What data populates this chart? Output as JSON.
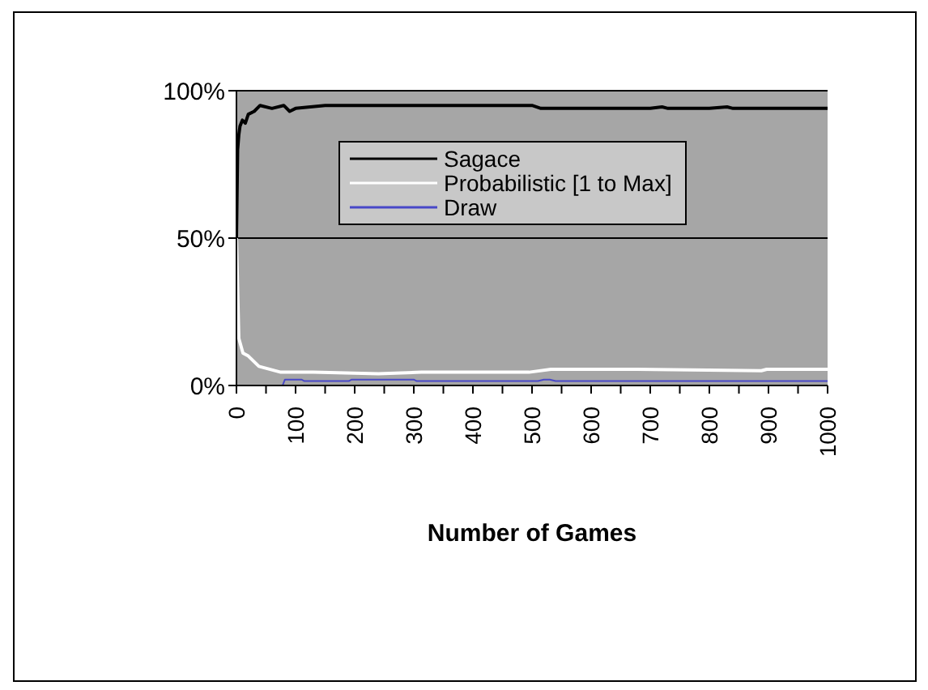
{
  "chart_data": {
    "type": "line",
    "xlabel": "Number of Games",
    "xlim": [
      0,
      1000
    ],
    "xticks": [
      0,
      {
        "value": 50,
        "label": null
      },
      100,
      {
        "value": 150,
        "label": null
      },
      200,
      {
        "value": 250,
        "label": null
      },
      300,
      {
        "value": 350,
        "label": null
      },
      400,
      {
        "value": 450,
        "label": null
      },
      500,
      {
        "value": 550,
        "label": null
      },
      600,
      {
        "value": 650,
        "label": null
      },
      700,
      {
        "value": 750,
        "label": null
      },
      800,
      {
        "value": 850,
        "label": null
      },
      900,
      {
        "value": 950,
        "label": null
      },
      1000
    ],
    "ylim": [
      0,
      100
    ],
    "yticks": [
      {
        "value": 0,
        "label": "0%"
      },
      {
        "value": 50,
        "label": "50%"
      },
      {
        "value": 100,
        "label": "100%"
      }
    ],
    "grid": "y",
    "legend": "top right",
    "marker": "none",
    "line_style": "solid",
    "series": [
      {
        "name": "Sagace",
        "color": "#000000",
        "x": [
          0,
          2,
          4,
          6,
          10,
          15,
          20,
          30,
          40,
          60,
          80,
          90,
          100,
          150,
          300,
          500,
          515,
          700,
          720,
          730,
          800,
          830,
          840,
          1000
        ],
        "values": [
          50,
          80,
          85,
          88,
          90,
          89,
          92,
          93,
          95,
          94,
          95,
          93,
          94,
          95,
          95,
          95,
          94,
          94,
          94.5,
          94,
          94,
          94.5,
          94,
          94
        ]
      },
      {
        "name": "Probabilistic [1 to Max]",
        "color": "#ffffff",
        "x": [
          0,
          4,
          11,
          20,
          38,
          75,
          130,
          240,
          313,
          495,
          532,
          678,
          888,
          897,
          1000
        ],
        "values": [
          50,
          16,
          11,
          10,
          6.5,
          4.5,
          4.5,
          4,
          4.5,
          4.5,
          5.5,
          5.5,
          5,
          5.5,
          5.5
        ]
      },
      {
        "name": "Draw",
        "color": "#4848c8",
        "x": [
          0,
          78,
          82,
          110,
          115,
          190,
          195,
          300,
          305,
          510,
          520,
          530,
          540,
          1000
        ],
        "values": [
          0,
          0,
          2,
          2,
          1.5,
          1.5,
          2,
          2,
          1.5,
          1.5,
          2,
          2,
          1.5,
          1.5
        ]
      }
    ]
  }
}
